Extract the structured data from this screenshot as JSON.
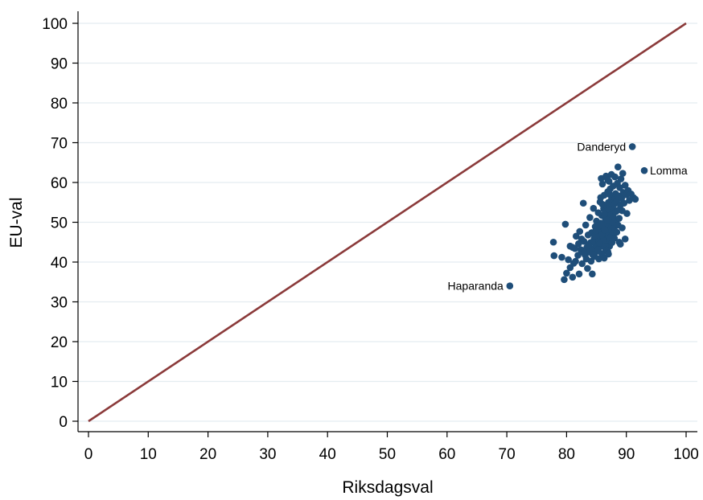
{
  "chart_data": {
    "type": "scatter",
    "xlabel": "Riksdagsval",
    "ylabel": "EU-val",
    "xlim": [
      0,
      100
    ],
    "ylim": [
      0,
      100
    ],
    "xticks": [
      "0",
      "10",
      "20",
      "30",
      "40",
      "50",
      "60",
      "70",
      "80",
      "90",
      "100"
    ],
    "yticks": [
      "0",
      "10",
      "20",
      "30",
      "40",
      "50",
      "60",
      "70",
      "80",
      "90",
      "100"
    ],
    "grid": "horizontal",
    "colors": {
      "points": "#1f4e79",
      "reference_line": "#8b3a3a",
      "grid": "#e4ecf0"
    },
    "reference_line": {
      "from": [
        0,
        0
      ],
      "to": [
        100,
        100
      ]
    },
    "labeled_points": [
      {
        "label": "Danderyd",
        "x": 91,
        "y": 69,
        "label_side": "left"
      },
      {
        "label": "Lomma",
        "x": 93,
        "y": 63,
        "label_side": "right"
      },
      {
        "label": "Haparanda",
        "x": 70.5,
        "y": 34,
        "label_side": "left"
      }
    ],
    "points": [
      [
        77.8,
        45.0
      ],
      [
        77.9,
        41.6
      ],
      [
        79.2,
        41.2
      ],
      [
        79.6,
        35.6
      ],
      [
        79.8,
        49.5
      ],
      [
        80.0,
        37.2
      ],
      [
        80.3,
        40.6
      ],
      [
        80.6,
        44.0
      ],
      [
        81.0,
        36.2
      ],
      [
        81.2,
        39.7
      ],
      [
        81.4,
        43.4
      ],
      [
        81.6,
        46.5
      ],
      [
        81.9,
        41.7
      ],
      [
        82.1,
        37.0
      ],
      [
        82.2,
        47.7
      ],
      [
        82.4,
        43.1
      ],
      [
        82.6,
        39.6
      ],
      [
        82.8,
        54.8
      ],
      [
        82.9,
        45.2
      ],
      [
        83.1,
        41.8
      ],
      [
        83.2,
        49.3
      ],
      [
        83.4,
        43.7
      ],
      [
        83.5,
        38.4
      ],
      [
        83.6,
        46.8
      ],
      [
        83.8,
        42.5
      ],
      [
        83.9,
        51.2
      ],
      [
        84.0,
        44.9
      ],
      [
        84.1,
        40.2
      ],
      [
        84.2,
        47.4
      ],
      [
        84.3,
        37.0
      ],
      [
        84.4,
        43.3
      ],
      [
        84.5,
        53.5
      ],
      [
        84.6,
        45.8
      ],
      [
        84.7,
        41.4
      ],
      [
        84.8,
        48.9
      ],
      [
        84.9,
        44.2
      ],
      [
        85.0,
        50.3
      ],
      [
        85.1,
        42.7
      ],
      [
        85.2,
        46.1
      ],
      [
        85.3,
        52.4
      ],
      [
        85.4,
        40.8
      ],
      [
        85.5,
        47.6
      ],
      [
        85.6,
        43.9
      ],
      [
        85.6,
        55.1
      ],
      [
        85.7,
        49.8
      ],
      [
        85.8,
        61.0
      ],
      [
        85.8,
        45.3
      ],
      [
        85.9,
        42.1
      ],
      [
        85.9,
        51.7
      ],
      [
        86.0,
        47.0
      ],
      [
        86.0,
        59.6
      ],
      [
        86.1,
        44.6
      ],
      [
        86.2,
        53.4
      ],
      [
        86.2,
        48.5
      ],
      [
        86.3,
        41.0
      ],
      [
        86.3,
        56.8
      ],
      [
        86.4,
        46.3
      ],
      [
        86.5,
        50.9
      ],
      [
        86.5,
        43.4
      ],
      [
        86.6,
        54.2
      ],
      [
        86.6,
        61.6
      ],
      [
        86.7,
        47.9
      ],
      [
        86.7,
        45.1
      ],
      [
        86.8,
        52.3
      ],
      [
        86.8,
        49.4
      ],
      [
        86.9,
        57.7
      ],
      [
        86.9,
        42.6
      ],
      [
        87.0,
        55.0
      ],
      [
        87.0,
        46.7
      ],
      [
        87.1,
        60.3
      ],
      [
        87.1,
        50.5
      ],
      [
        87.2,
        44.0
      ],
      [
        87.2,
        53.1
      ],
      [
        87.3,
        48.1
      ],
      [
        87.3,
        58.4
      ],
      [
        87.4,
        51.8
      ],
      [
        87.4,
        45.7
      ],
      [
        87.5,
        62.0
      ],
      [
        87.5,
        55.7
      ],
      [
        87.6,
        49.0
      ],
      [
        87.7,
        53.9
      ],
      [
        87.7,
        47.2
      ],
      [
        87.8,
        59.1
      ],
      [
        87.8,
        51.3
      ],
      [
        87.9,
        56.3
      ],
      [
        88.0,
        48.7
      ],
      [
        88.0,
        54.6
      ],
      [
        88.1,
        61.4
      ],
      [
        88.2,
        52.6
      ],
      [
        88.2,
        57.2
      ],
      [
        88.3,
        50.1
      ],
      [
        88.4,
        55.4
      ],
      [
        88.5,
        59.8
      ],
      [
        88.5,
        53.0
      ],
      [
        88.6,
        63.9
      ],
      [
        88.7,
        56.6
      ],
      [
        88.8,
        51.0
      ],
      [
        88.9,
        58.7
      ],
      [
        89.0,
        54.3
      ],
      [
        89.0,
        44.5
      ],
      [
        89.1,
        60.9
      ],
      [
        89.2,
        56.0
      ],
      [
        89.3,
        52.9
      ],
      [
        89.4,
        62.3
      ],
      [
        89.5,
        57.5
      ],
      [
        89.6,
        54.8
      ],
      [
        89.8,
        59.3
      ],
      [
        90.0,
        56.9
      ],
      [
        90.1,
        52.2
      ],
      [
        90.3,
        58.0
      ],
      [
        90.5,
        55.5
      ],
      [
        90.8,
        57.1
      ],
      [
        91.2,
        56.2
      ],
      [
        91.5,
        55.8
      ],
      [
        86.5,
        44.0
      ],
      [
        86.7,
        43.0
      ],
      [
        87.0,
        42.0
      ],
      [
        86.2,
        45.5
      ],
      [
        85.9,
        46.8
      ],
      [
        86.4,
        48.0
      ],
      [
        86.1,
        49.6
      ],
      [
        85.5,
        44.8
      ],
      [
        85.3,
        43.1
      ],
      [
        85.0,
        45.9
      ],
      [
        84.7,
        46.6
      ],
      [
        84.4,
        41.8
      ],
      [
        86.8,
        50.6
      ],
      [
        87.3,
        46.2
      ],
      [
        87.6,
        44.9
      ],
      [
        88.0,
        46.0
      ],
      [
        88.4,
        47.5
      ],
      [
        88.8,
        45.0
      ],
      [
        87.9,
        50.0
      ],
      [
        88.6,
        49.3
      ],
      [
        89.3,
        48.6
      ],
      [
        89.8,
        45.8
      ],
      [
        86.3,
        52.0
      ],
      [
        86.0,
        54.5
      ],
      [
        85.7,
        56.2
      ],
      [
        87.2,
        57.0
      ],
      [
        86.9,
        60.6
      ],
      [
        85.4,
        49.1
      ],
      [
        84.9,
        47.9
      ],
      [
        84.3,
        45.0
      ],
      [
        83.7,
        44.3
      ],
      [
        83.3,
        40.8
      ],
      [
        82.9,
        42.3
      ],
      [
        82.5,
        45.8
      ],
      [
        82.0,
        44.6
      ],
      [
        81.5,
        40.2
      ],
      [
        81.0,
        43.7
      ],
      [
        80.6,
        38.6
      ]
    ]
  }
}
